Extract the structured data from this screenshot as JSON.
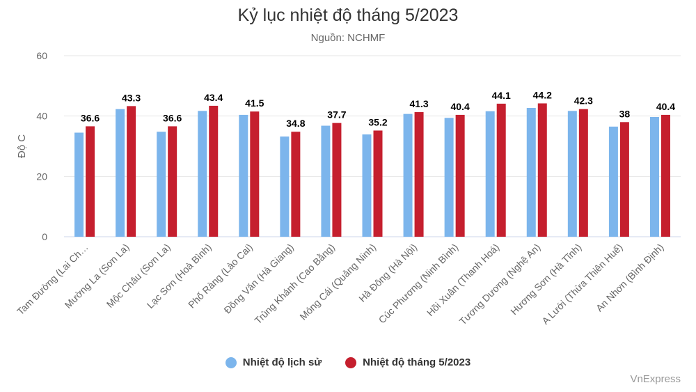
{
  "chart_data": {
    "type": "bar",
    "title": "Kỷ lục nhiệt độ tháng 5/2023",
    "subtitle": "Nguồn: NCHMF",
    "ylabel": "Độ C",
    "xlabel": "",
    "ylim": [
      0,
      60
    ],
    "yticks": [
      0,
      20,
      40,
      60
    ],
    "grid": true,
    "legend_position": "bottom",
    "categories": [
      "Tam Đường (Lai Ch…",
      "Mường La (Sơn La)",
      "Mộc Châu (Sơn La)",
      "Lạc Sơn (Hoà Bình)",
      "Phố Ràng (Lào Cai)",
      "Đồng Văn (Hà Giang)",
      "Trùng Khánh (Cao Bằng)",
      "Móng Cái (Quảng Ninh)",
      "Hà Đông (Hà Nội)",
      "Cúc Phương (Ninh Bình)",
      "Hồi Xuân (Thanh Hoá)",
      "Tương Dương (Nghệ An)",
      "Hương Sơn (Hà Tĩnh)",
      "A Lưới (Thừa Thiên Huế)",
      "An Nhơn (Bình Định)"
    ],
    "series": [
      {
        "name": "Nhiệt độ lịch sử",
        "color": "#7cb5ec",
        "values": [
          34.5,
          42.3,
          34.8,
          41.7,
          40.4,
          33.2,
          36.8,
          33.9,
          40.7,
          39.4,
          41.6,
          42.7,
          41.7,
          36.5,
          39.7
        ]
      },
      {
        "name": "Nhiệt độ tháng 5/2023",
        "color": "#c51f2e",
        "show_labels": true,
        "values": [
          36.6,
          43.3,
          36.6,
          43.4,
          41.5,
          34.8,
          37.7,
          35.2,
          41.3,
          40.4,
          44.1,
          44.2,
          42.3,
          38,
          40.4
        ]
      }
    ]
  },
  "credit": "VnExpress"
}
